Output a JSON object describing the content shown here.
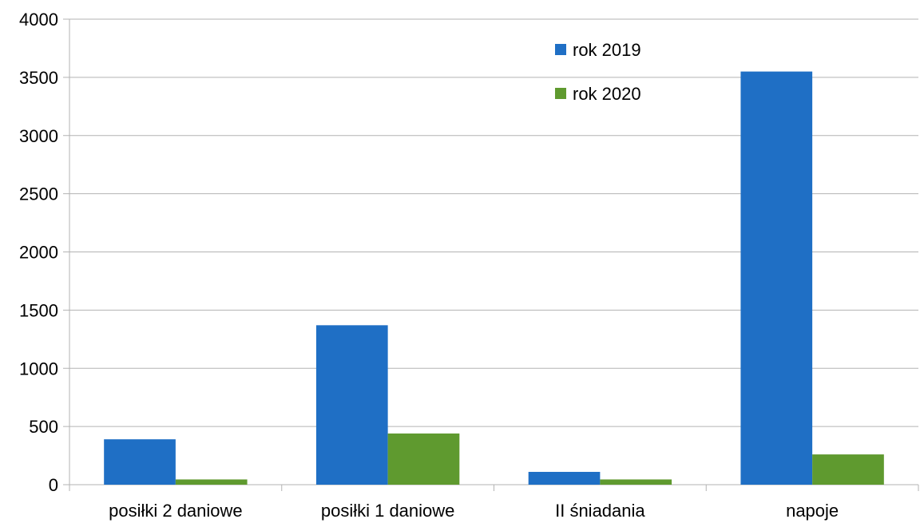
{
  "chart_data": {
    "type": "bar",
    "categories": [
      "posiłki 2 daniowe",
      "posiłki 1 daniowe",
      "II śniadania",
      "napoje"
    ],
    "series": [
      {
        "name": "rok 2019",
        "color": "#1f6fc5",
        "values": [
          390,
          1370,
          110,
          3550
        ]
      },
      {
        "name": "rok 2020",
        "color": "#5f9a2f",
        "values": [
          45,
          440,
          45,
          260
        ]
      }
    ],
    "yticks": [
      "0",
      "500",
      "1000",
      "1500",
      "2000",
      "2500",
      "3000",
      "3500",
      "4000"
    ],
    "ylim": [
      0,
      4000
    ],
    "grid": true,
    "legend_position": "top-right",
    "grid_color": "#b3b3b3"
  }
}
